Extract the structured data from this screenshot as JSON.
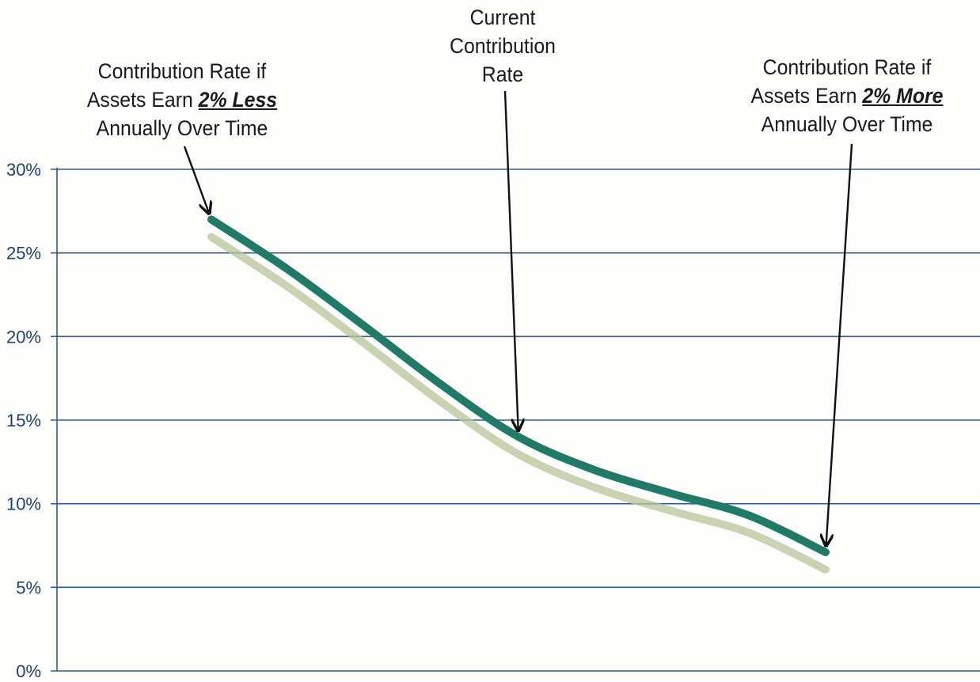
{
  "chart_data": {
    "type": "line",
    "title": "",
    "xlabel": "",
    "ylabel": "",
    "ylim": [
      0,
      30
    ],
    "y_ticks": [
      "0%",
      "5%",
      "10%",
      "15%",
      "20%",
      "25%",
      "30%"
    ],
    "grid": true,
    "legend": "none",
    "series": [
      {
        "color": "#1f7a68",
        "shadow_color": "#b7c49a",
        "x": [
          0,
          1,
          2,
          3,
          4,
          5,
          6,
          7,
          8
        ],
        "values": [
          27.0,
          24.0,
          20.6,
          17.1,
          14.0,
          12.0,
          10.6,
          9.3,
          7.1
        ]
      }
    ],
    "annotations": [
      {
        "key": "less",
        "lines": [
          "Contribution Rate if",
          "Assets Earn ",
          "Annually Over Time"
        ],
        "emphasis": "2% Less",
        "points_to_index": 0
      },
      {
        "key": "current",
        "lines": [
          "Current",
          "Contribution",
          "Rate"
        ],
        "points_to_index": 4
      },
      {
        "key": "more",
        "lines": [
          "Contribution Rate if",
          "Assets Earn ",
          "Annually Over Time"
        ],
        "emphasis": "2% More",
        "points_to_index": 8
      }
    ]
  },
  "colors": {
    "gridline": "#2c5d94",
    "axis": "#2c5d94",
    "tick_text": "#1f3f6e",
    "line": "#1f7a68",
    "arrow": "#111111"
  }
}
